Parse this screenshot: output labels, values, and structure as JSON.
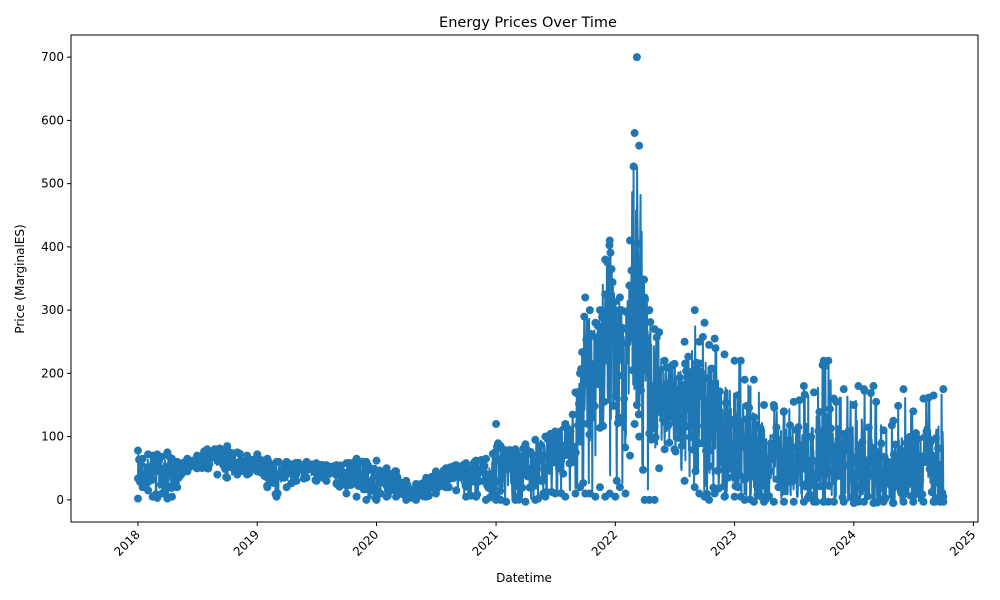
{
  "chart_data": {
    "type": "line",
    "title": "Energy Prices Over Time",
    "xlabel": "Datetime",
    "ylabel": "Price (MarginalES)",
    "xlim": [
      "2017-06-10",
      "2025-01-15"
    ],
    "ylim": [
      -35,
      735
    ],
    "xticks": [
      "2018",
      "2019",
      "2020",
      "2021",
      "2022",
      "2023",
      "2024",
      "2025"
    ],
    "yticks": [
      0,
      100,
      200,
      300,
      400,
      500,
      600,
      700
    ],
    "marker": "circle",
    "grid": false,
    "series": [
      {
        "color": "#1f77b4",
        "x": [
          "2018-01-01",
          "2018-01-15",
          "2018-02-01",
          "2018-02-15",
          "2018-03-01",
          "2018-03-15",
          "2018-04-01",
          "2018-04-15",
          "2018-05-01",
          "2018-06-01",
          "2018-07-01",
          "2018-08-01",
          "2018-09-01",
          "2018-10-01",
          "2018-11-01",
          "2018-12-01",
          "2019-01-01",
          "2019-02-01",
          "2019-03-01",
          "2019-04-01",
          "2019-05-01",
          "2019-06-01",
          "2019-07-01",
          "2019-08-01",
          "2019-09-01",
          "2019-10-01",
          "2019-11-01",
          "2019-12-01",
          "2020-01-01",
          "2020-02-01",
          "2020-03-01",
          "2020-04-01",
          "2020-05-01",
          "2020-06-01",
          "2020-07-01",
          "2020-08-01",
          "2020-09-01",
          "2020-10-01",
          "2020-11-01",
          "2020-12-01",
          "2021-01-01",
          "2021-01-15",
          "2021-02-01",
          "2021-03-01",
          "2021-04-01",
          "2021-05-01",
          "2021-06-01",
          "2021-07-01",
          "2021-08-01",
          "2021-09-01",
          "2021-09-15",
          "2021-10-01",
          "2021-10-15",
          "2021-11-01",
          "2021-11-15",
          "2021-12-01",
          "2021-12-15",
          "2022-01-01",
          "2022-01-15",
          "2022-02-01",
          "2022-02-15",
          "2022-03-01",
          "2022-03-08",
          "2022-03-15",
          "2022-04-01",
          "2022-04-15",
          "2022-05-01",
          "2022-05-15",
          "2022-06-01",
          "2022-07-01",
          "2022-08-01",
          "2022-09-01",
          "2022-09-15",
          "2022-10-01",
          "2022-10-15",
          "2022-11-01",
          "2022-12-01",
          "2023-01-01",
          "2023-01-20",
          "2023-02-01",
          "2023-03-01",
          "2023-04-01",
          "2023-05-01",
          "2023-06-01",
          "2023-07-01",
          "2023-08-01",
          "2023-09-01",
          "2023-10-01",
          "2023-10-15",
          "2023-11-01",
          "2023-12-01",
          "2024-01-01",
          "2024-01-15",
          "2024-02-01",
          "2024-03-01",
          "2024-04-01",
          "2024-05-01",
          "2024-06-01",
          "2024-07-01",
          "2024-08-01",
          "2024-09-01",
          "2024-10-01"
        ],
        "min": [
          2,
          20,
          15,
          5,
          3,
          10,
          2,
          5,
          20,
          45,
          50,
          50,
          40,
          35,
          40,
          40,
          45,
          20,
          5,
          20,
          30,
          35,
          30,
          30,
          25,
          10,
          5,
          0,
          0,
          5,
          5,
          0,
          0,
          5,
          10,
          20,
          15,
          5,
          5,
          0,
          0,
          0,
          -3,
          0,
          -3,
          0,
          5,
          10,
          5,
          10,
          20,
          10,
          10,
          5,
          20,
          5,
          10,
          5,
          20,
          10,
          70,
          120,
          150,
          100,
          0,
          0,
          0,
          50,
          80,
          80,
          30,
          20,
          10,
          5,
          0,
          10,
          5,
          5,
          5,
          0,
          -3,
          -3,
          -3,
          -3,
          -3,
          -3,
          -3,
          -3,
          -3,
          -3,
          -3,
          -5,
          -3,
          -3,
          -5,
          -3,
          -5,
          -3,
          -3,
          -3,
          -3,
          -3
        ],
        "max": [
          78,
          65,
          72,
          70,
          72,
          68,
          75,
          65,
          60,
          65,
          70,
          80,
          80,
          85,
          75,
          70,
          72,
          65,
          60,
          60,
          58,
          60,
          58,
          55,
          55,
          58,
          65,
          60,
          62,
          50,
          45,
          30,
          25,
          35,
          45,
          50,
          55,
          58,
          62,
          65,
          120,
          85,
          78,
          80,
          88,
          95,
          100,
          108,
          120,
          170,
          200,
          320,
          300,
          280,
          300,
          380,
          410,
          300,
          320,
          298,
          410,
          580,
          700,
          560,
          320,
          300,
          270,
          265,
          220,
          215,
          250,
          300,
          250,
          280,
          245,
          255,
          230,
          220,
          220,
          190,
          190,
          150,
          150,
          140,
          155,
          180,
          170,
          220,
          220,
          160,
          175,
          150,
          180,
          175,
          180,
          110,
          125,
          175,
          140,
          160,
          165,
          175
        ],
        "center": [
          45,
          40,
          45,
          40,
          45,
          40,
          45,
          40,
          45,
          55,
          60,
          65,
          70,
          65,
          60,
          55,
          60,
          45,
          45,
          45,
          50,
          50,
          45,
          45,
          45,
          40,
          45,
          35,
          30,
          30,
          25,
          15,
          12,
          20,
          30,
          38,
          42,
          40,
          40,
          35,
          60,
          40,
          40,
          45,
          50,
          55,
          65,
          75,
          85,
          110,
          140,
          200,
          180,
          170,
          200,
          250,
          280,
          220,
          200,
          180,
          250,
          350,
          450,
          330,
          220,
          200,
          180,
          170,
          150,
          140,
          140,
          150,
          130,
          140,
          130,
          120,
          100,
          90,
          80,
          80,
          70,
          60,
          60,
          60,
          70,
          60,
          60,
          70,
          80,
          60,
          60,
          60,
          60,
          60,
          50,
          40,
          40,
          50,
          50,
          60,
          55,
          50
        ]
      }
    ]
  }
}
